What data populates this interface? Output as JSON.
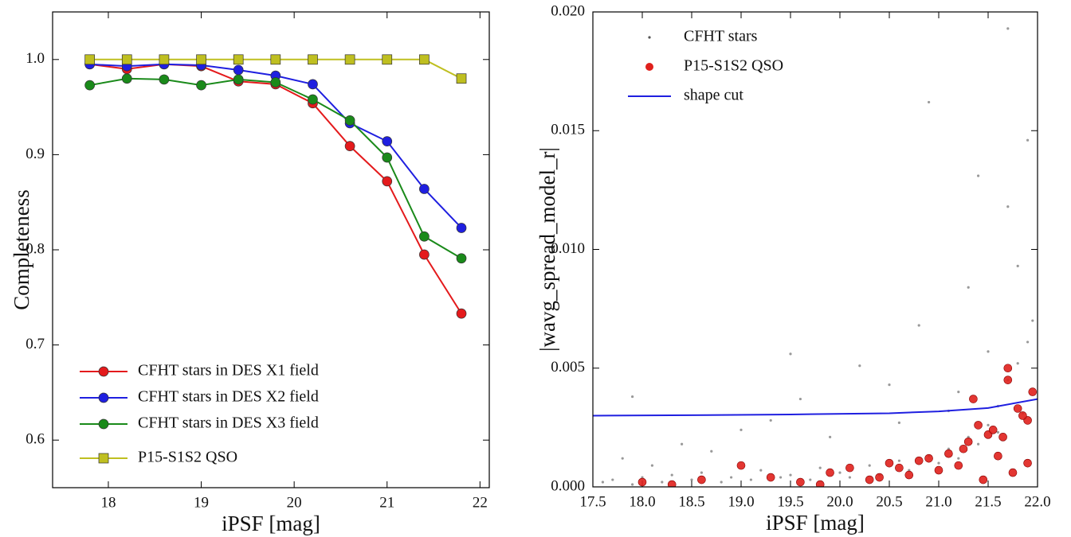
{
  "chart_data": [
    {
      "type": "line",
      "xlabel": "iPSF [mag]",
      "ylabel": "Completeness",
      "x": [
        17.8,
        18.2,
        18.6,
        19.0,
        19.4,
        19.8,
        20.2,
        20.6,
        21.0,
        21.4,
        21.8
      ],
      "xlim": [
        17.4,
        22.1
      ],
      "xticks": [
        18,
        19,
        20,
        21,
        22
      ],
      "ylim": [
        0.55,
        1.05
      ],
      "yticks": [
        0.6,
        0.7,
        0.8,
        0.9,
        {
          "value": 1.0,
          "label": "1.0"
        }
      ],
      "legend": "lower left",
      "series": [
        {
          "name": "CFHT stars in DES X1 field",
          "color": "#e41a1c",
          "marker": "circle",
          "values": [
            0.995,
            0.99,
            0.995,
            0.993,
            0.977,
            0.974,
            0.954,
            0.909,
            0.872,
            0.795,
            0.733
          ]
        },
        {
          "name": "CFHT stars in DES X2 field",
          "color": "#1f1fe0",
          "marker": "circle",
          "values": [
            0.995,
            0.993,
            0.995,
            0.994,
            0.989,
            0.983,
            0.974,
            0.933,
            0.914,
            0.864,
            0.823
          ]
        },
        {
          "name": "CFHT stars in DES X3 field",
          "color": "#1a8a1a",
          "marker": "circle",
          "values": [
            0.973,
            0.98,
            0.979,
            0.973,
            0.979,
            0.976,
            0.958,
            0.936,
            0.897,
            0.814,
            0.791
          ]
        },
        {
          "name": "P15-S1S2 QSO",
          "color": "#bfbf20",
          "marker": "square",
          "values": [
            1.0,
            1.0,
            1.0,
            1.0,
            1.0,
            1.0,
            1.0,
            1.0,
            1.0,
            1.0,
            0.98
          ]
        }
      ]
    },
    {
      "type": "scatter",
      "xlabel": "iPSF [mag]",
      "ylabel": "|wavg_spread_model_r|",
      "xlim": [
        17.5,
        22.0
      ],
      "xticks": [
        17.5,
        {
          "value": 18,
          "label": "18.0"
        },
        18.5,
        {
          "value": 19,
          "label": "19.0"
        },
        19.5,
        {
          "value": 20,
          "label": "20.0"
        },
        20.5,
        {
          "value": 21,
          "label": "21.0"
        },
        21.5,
        {
          "value": 22,
          "label": "22.0"
        }
      ],
      "ylim": [
        0,
        0.02
      ],
      "yticks": [
        {
          "value": 0,
          "label": "0.000"
        },
        {
          "value": 0.005,
          "label": "0.005"
        },
        {
          "value": 0.01,
          "label": "0.010"
        },
        {
          "value": 0.015,
          "label": "0.015"
        },
        {
          "value": 0.02,
          "label": "0.020"
        }
      ],
      "legend": "upper left",
      "series": [
        {
          "name": "CFHT stars",
          "color": "#555555",
          "mode": "points",
          "x": [
            17.6,
            17.7,
            17.9,
            18.0,
            18.2,
            18.3,
            18.5,
            18.6,
            18.8,
            18.9,
            19.1,
            19.2,
            19.4,
            19.5,
            19.7,
            19.8,
            20.0,
            20.1,
            20.3,
            20.4,
            20.6,
            20.7,
            20.9,
            21.0,
            21.1,
            21.2,
            21.3,
            21.4,
            21.5,
            21.6,
            21.7,
            21.8,
            21.9,
            21.95,
            17.8,
            18.4,
            19.0,
            19.6,
            20.2,
            20.8,
            21.3,
            21.7,
            21.9,
            18.1,
            18.7,
            19.3,
            19.9,
            20.5,
            21.1,
            21.5,
            21.8,
            17.9,
            19.5,
            20.6,
            21.2,
            21.6,
            21.85,
            20.9,
            21.7,
            21.4
          ],
          "y": [
            0.0002,
            0.0003,
            0.0001,
            0.0004,
            0.0002,
            0.0005,
            0.0003,
            0.0006,
            0.0002,
            0.0004,
            0.0003,
            0.0007,
            0.0004,
            0.0005,
            0.0003,
            0.0008,
            0.0006,
            0.0004,
            0.0009,
            0.0005,
            0.0011,
            0.0007,
            0.0013,
            0.001,
            0.0016,
            0.0012,
            0.0021,
            0.0018,
            0.0026,
            0.0034,
            0.0045,
            0.0052,
            0.0061,
            0.007,
            0.0012,
            0.0018,
            0.0024,
            0.0037,
            0.0051,
            0.0068,
            0.0084,
            0.0118,
            0.0146,
            0.0009,
            0.0015,
            0.0028,
            0.0021,
            0.0043,
            0.0032,
            0.0057,
            0.0093,
            0.0038,
            0.0056,
            0.0027,
            0.004,
            0.0023,
            0.0031,
            0.0162,
            0.0193,
            0.0131
          ]
        },
        {
          "name": "P15-S1S2 QSO",
          "color": "#e0201c",
          "mode": "circles",
          "x": [
            18.0,
            18.3,
            18.6,
            19.0,
            19.3,
            19.6,
            19.9,
            20.1,
            20.3,
            20.5,
            20.7,
            20.9,
            21.0,
            21.1,
            21.2,
            21.3,
            21.4,
            21.5,
            21.6,
            21.7,
            21.8,
            21.9,
            21.95,
            20.4,
            20.8,
            21.35,
            21.55,
            21.75,
            21.85,
            19.8,
            20.6,
            21.25,
            21.45,
            21.65,
            21.9,
            21.7
          ],
          "y": [
            0.0002,
            0.0001,
            0.0003,
            0.0009,
            0.0004,
            0.0002,
            0.0006,
            0.0008,
            0.0003,
            0.001,
            0.0005,
            0.0012,
            0.0007,
            0.0014,
            0.0009,
            0.0019,
            0.0026,
            0.0022,
            0.0013,
            0.005,
            0.0033,
            0.0028,
            0.004,
            0.0004,
            0.0011,
            0.0037,
            0.0024,
            0.0006,
            0.003,
            0.0001,
            0.0008,
            0.0016,
            0.0003,
            0.0021,
            0.001,
            0.0045
          ]
        },
        {
          "name": "shape cut",
          "color": "#1f1fe0",
          "mode": "line",
          "x": [
            17.5,
            18.5,
            19.5,
            20.5,
            21.0,
            21.5,
            22.0
          ],
          "y": [
            0.003,
            0.00302,
            0.00305,
            0.0031,
            0.00318,
            0.00332,
            0.0037
          ]
        }
      ]
    }
  ]
}
